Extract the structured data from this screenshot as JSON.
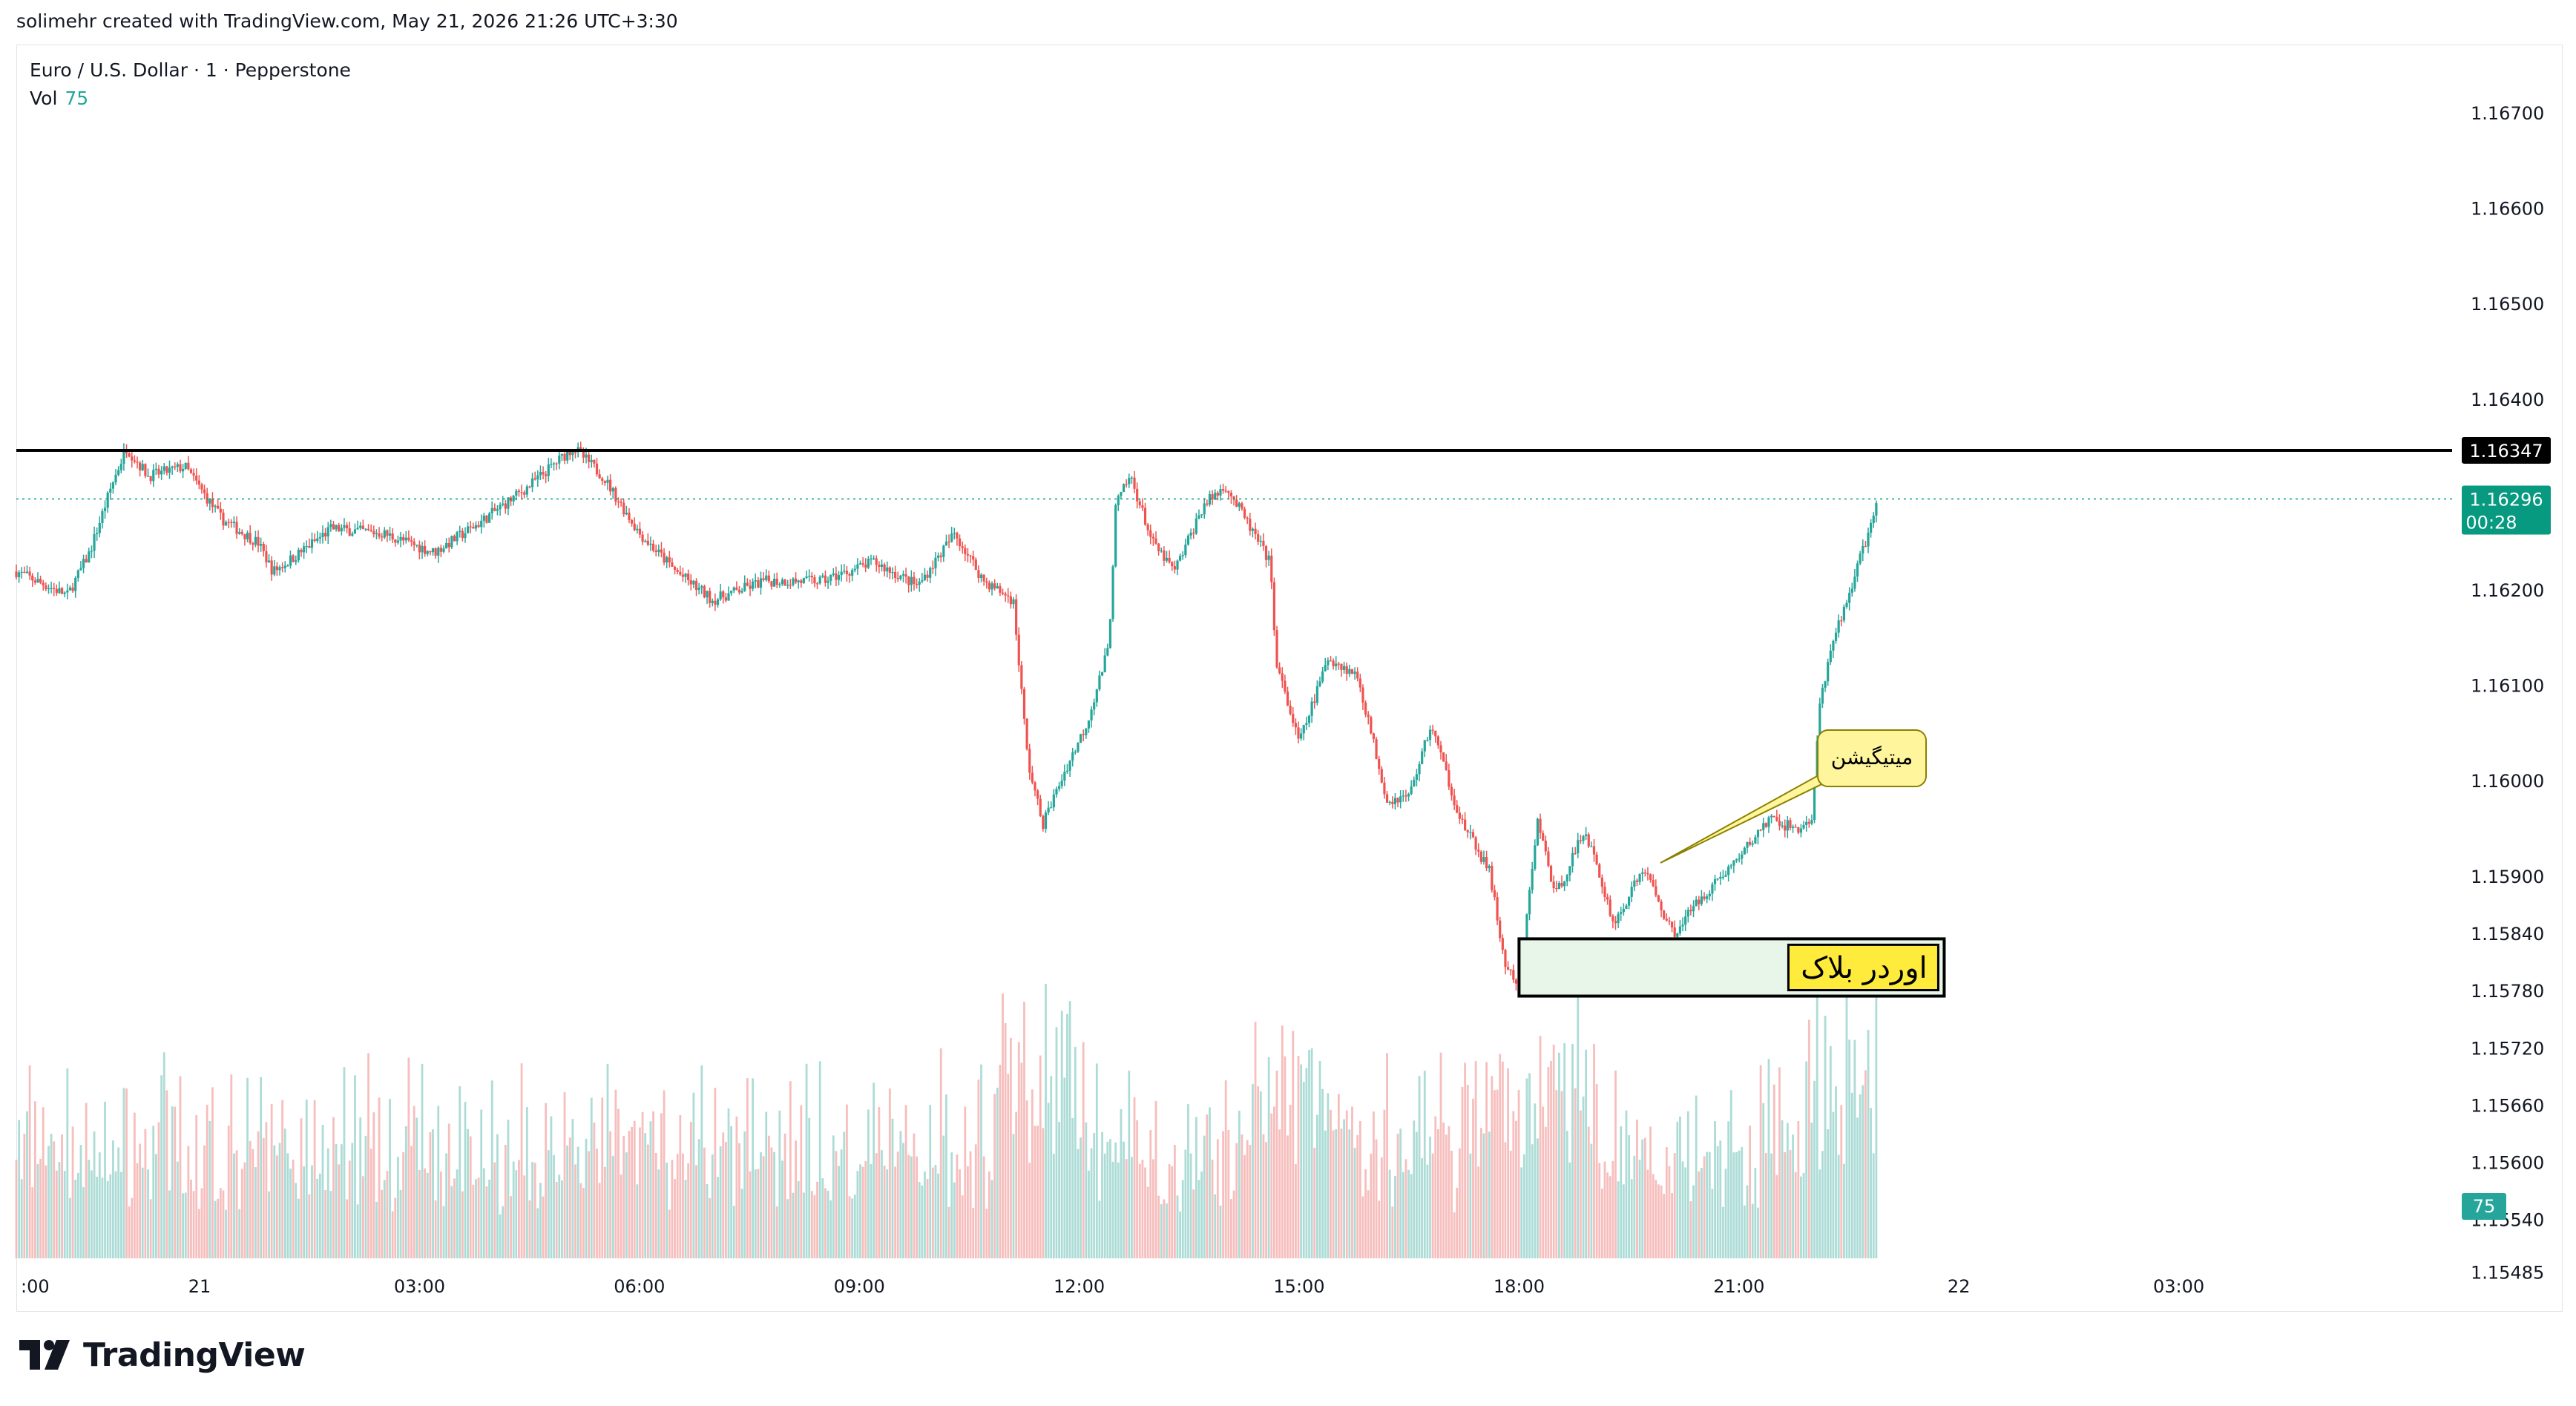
{
  "header": {
    "credit": "solimehr created with TradingView.com, May 21, 2026 21:26 UTC+3:30"
  },
  "legend": {
    "symbol_line": "Euro / U.S. Dollar · 1 · Pepperstone",
    "vol_label": "Vol",
    "vol_value": "75"
  },
  "branding": {
    "wordmark": "TradingView",
    "logo_icon": "tradingview-logo-icon"
  },
  "colors": {
    "up": "#26a69a",
    "down": "#ef5350",
    "vol_up": "#9fd6cf",
    "vol_down": "#f5b3b1",
    "last_price": "#089981",
    "resistance_line": "#000000",
    "callout_fill": "#fff59d",
    "orderblock_fill": "#e8f5e9",
    "orderblock_label_fill": "#ffeb3b"
  },
  "chart_data": {
    "type": "candlestick",
    "symbol": "Euro / U.S. Dollar",
    "interval": "1",
    "broker": "Pepperstone",
    "x_tick_labels": [
      ":00",
      "21",
      "03:00",
      "06:00",
      "09:00",
      "12:00",
      "15:00",
      "18:00",
      "21:00",
      "22",
      "03:00"
    ],
    "y_tick_labels": [
      "1.16700",
      "1.16600",
      "1.16500",
      "1.16400",
      "1.16200",
      "1.16100",
      "1.16000",
      "1.15900",
      "1.15840",
      "1.15780",
      "1.15720",
      "1.15660",
      "1.15600",
      "1.15540",
      "1.15485"
    ],
    "ylim": [
      1.1545,
      1.1673
    ],
    "close_path": [
      {
        "h": 0.0,
        "p": 1.1622
      },
      {
        "h": 0.7,
        "p": 1.16195
      },
      {
        "h": 1.0,
        "p": 1.1624
      },
      {
        "h": 1.3,
        "p": 1.1631
      },
      {
        "h": 1.5,
        "p": 1.1635
      },
      {
        "h": 1.8,
        "p": 1.1632
      },
      {
        "h": 2.3,
        "p": 1.1633
      },
      {
        "h": 2.8,
        "p": 1.16275
      },
      {
        "h": 3.3,
        "p": 1.1625
      },
      {
        "h": 3.5,
        "p": 1.1622
      },
      {
        "h": 3.7,
        "p": 1.1623
      },
      {
        "h": 4.3,
        "p": 1.16265
      },
      {
        "h": 5.0,
        "p": 1.1626
      },
      {
        "h": 5.7,
        "p": 1.1624
      },
      {
        "h": 6.3,
        "p": 1.1627
      },
      {
        "h": 7.0,
        "p": 1.1631
      },
      {
        "h": 7.6,
        "p": 1.1635
      },
      {
        "h": 8.0,
        "p": 1.1632
      },
      {
        "h": 8.5,
        "p": 1.1626
      },
      {
        "h": 9.0,
        "p": 1.1622
      },
      {
        "h": 9.5,
        "p": 1.1619
      },
      {
        "h": 10.2,
        "p": 1.1621
      },
      {
        "h": 11.0,
        "p": 1.1621
      },
      {
        "h": 11.7,
        "p": 1.1623
      },
      {
        "h": 12.3,
        "p": 1.16205
      },
      {
        "h": 12.8,
        "p": 1.1626
      },
      {
        "h": 13.2,
        "p": 1.1621
      },
      {
        "h": 13.6,
        "p": 1.1619
      },
      {
        "h": 13.8,
        "p": 1.1602
      },
      {
        "h": 14.0,
        "p": 1.15955
      },
      {
        "h": 14.3,
        "p": 1.1601
      },
      {
        "h": 14.6,
        "p": 1.1606
      },
      {
        "h": 14.9,
        "p": 1.1614
      },
      {
        "h": 15.0,
        "p": 1.1629
      },
      {
        "h": 15.2,
        "p": 1.1632
      },
      {
        "h": 15.5,
        "p": 1.1625
      },
      {
        "h": 15.8,
        "p": 1.1622
      },
      {
        "h": 16.2,
        "p": 1.1629
      },
      {
        "h": 16.5,
        "p": 1.1631
      },
      {
        "h": 16.8,
        "p": 1.1627
      },
      {
        "h": 17.1,
        "p": 1.1623
      },
      {
        "h": 17.2,
        "p": 1.1612
      },
      {
        "h": 17.5,
        "p": 1.1604
      },
      {
        "h": 17.9,
        "p": 1.1613
      },
      {
        "h": 18.3,
        "p": 1.1611
      },
      {
        "h": 18.7,
        "p": 1.1598
      },
      {
        "h": 19.0,
        "p": 1.15985
      },
      {
        "h": 19.3,
        "p": 1.1606
      },
      {
        "h": 19.7,
        "p": 1.1596
      },
      {
        "h": 20.1,
        "p": 1.15905
      },
      {
        "h": 20.3,
        "p": 1.1581
      },
      {
        "h": 20.5,
        "p": 1.1578
      },
      {
        "h": 20.75,
        "p": 1.1596
      },
      {
        "h": 21.0,
        "p": 1.1588
      },
      {
        "h": 21.4,
        "p": 1.1595
      },
      {
        "h": 21.8,
        "p": 1.1585
      },
      {
        "h": 22.2,
        "p": 1.1591
      },
      {
        "h": 22.6,
        "p": 1.1584
      },
      {
        "h": 23.0,
        "p": 1.1588
      },
      {
        "h": 23.5,
        "p": 1.1592
      },
      {
        "h": 23.9,
        "p": 1.1596
      },
      {
        "h": 24.3,
        "p": 1.1595
      },
      {
        "h": 24.5,
        "p": 1.1596
      },
      {
        "h": 24.6,
        "p": 1.1608
      },
      {
        "h": 24.8,
        "p": 1.1615
      },
      {
        "h": 25.1,
        "p": 1.1622
      },
      {
        "h": 25.4,
        "p": 1.16296
      }
    ],
    "horizontal_line": {
      "price": 1.16347,
      "label": "1.16347"
    },
    "last_price": {
      "price": 1.16296,
      "label": "1.16296",
      "countdown": "00:28"
    },
    "volume_last": {
      "value": 75,
      "label": "75"
    },
    "annotations": [
      {
        "type": "callout",
        "text": "میتیگیشن"
      },
      {
        "type": "rectangle",
        "text": "اوردر بلاک",
        "price_top": 1.15835,
        "price_bottom": 1.15775,
        "from_hour": 20.5,
        "to_hour": 26.3
      }
    ]
  }
}
